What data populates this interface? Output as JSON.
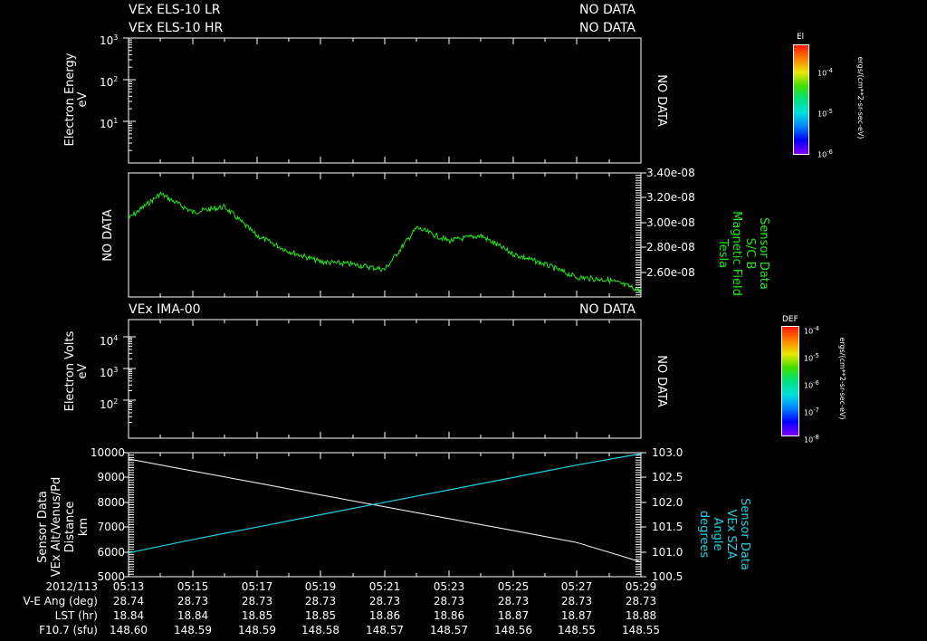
{
  "colors": {
    "background": "#000000",
    "foreground": "#ffffff",
    "magnetic_field": "#22e81e",
    "sza": "#22d0e0",
    "altitude": "#ffffff"
  },
  "panel1": {
    "title_left_1": "VEx ELS-10 LR",
    "title_left_2": "VEx ELS-10 HR",
    "title_right_1": "NO DATA",
    "title_right_2": "NO DATA",
    "ylabel_1": "Electron Energy",
    "ylabel_2": "eV",
    "yticks": [
      {
        "base": "10",
        "exp": "3"
      },
      {
        "base": "10",
        "exp": "2"
      },
      {
        "base": "10",
        "exp": "1"
      }
    ],
    "right_label": "NO DATA",
    "colorbar": {
      "title": "El",
      "ticks": [
        {
          "base": "10",
          "exp": "-4"
        },
        {
          "base": "10",
          "exp": "-5"
        },
        {
          "base": "10",
          "exp": "-6"
        }
      ],
      "units": "ergs/(cm**2-sr-sec-eV)"
    }
  },
  "panel2": {
    "left_label": "NO DATA",
    "yticks": [
      "3.40e-08",
      "3.20e-08",
      "3.00e-08",
      "2.80e-08",
      "2.60e-08"
    ],
    "ylabel_lines": [
      "Sensor Data",
      "S/C B",
      "Magnetic Field",
      "Tesla"
    ]
  },
  "panel3": {
    "title_left": "VEx IMA-00",
    "title_right": "NO DATA",
    "ylabel_1": "Electron Volts",
    "ylabel_2": "eV",
    "yticks": [
      {
        "base": "10",
        "exp": "4"
      },
      {
        "base": "10",
        "exp": "3"
      },
      {
        "base": "10",
        "exp": "2"
      }
    ],
    "right_label": "NO DATA",
    "colorbar": {
      "title": "DEF",
      "ticks": [
        {
          "base": "10",
          "exp": "-4"
        },
        {
          "base": "10",
          "exp": "-5"
        },
        {
          "base": "10",
          "exp": "-6"
        },
        {
          "base": "10",
          "exp": "-7"
        },
        {
          "base": "10",
          "exp": "-8"
        }
      ],
      "units": "ergs/(cm**2-sr-sec-eV)"
    }
  },
  "panel4": {
    "ylabel_lines": [
      "Sensor Data",
      "VEx Alt/Venus/Pd",
      "Distance",
      "km"
    ],
    "yticks_left": [
      "10000",
      "9000",
      "8000",
      "7000",
      "6000",
      "5000"
    ],
    "yticks_right": [
      "103.0",
      "102.5",
      "102.0",
      "101.5",
      "101.0",
      "100.5"
    ],
    "ylabel_right_lines": [
      "Sensor Data",
      "VEx SZA",
      "Angle",
      "degrees"
    ]
  },
  "footer": {
    "row_labels": [
      "2012/113",
      "V-E Ang (deg)",
      "LST (hr)",
      "F10.7 (sfu)"
    ],
    "columns": [
      {
        "time": "05:13",
        "ve": "28.74",
        "lst": "18.84",
        "f107": "148.60"
      },
      {
        "time": "05:15",
        "ve": "28.73",
        "lst": "18.84",
        "f107": "148.59"
      },
      {
        "time": "05:17",
        "ve": "28.73",
        "lst": "18.85",
        "f107": "148.59"
      },
      {
        "time": "05:19",
        "ve": "28.73",
        "lst": "18.85",
        "f107": "148.58"
      },
      {
        "time": "05:21",
        "ve": "28.73",
        "lst": "18.86",
        "f107": "148.57"
      },
      {
        "time": "05:23",
        "ve": "28.73",
        "lst": "18.86",
        "f107": "148.57"
      },
      {
        "time": "05:25",
        "ve": "28.73",
        "lst": "18.87",
        "f107": "148.56"
      },
      {
        "time": "05:27",
        "ve": "28.73",
        "lst": "18.87",
        "f107": "148.55"
      },
      {
        "time": "05:29",
        "ve": "28.73",
        "lst": "18.88",
        "f107": "148.55"
      }
    ]
  },
  "chart_data": [
    {
      "type": "heatmap",
      "title": "VEx ELS-10 LR / VEx ELS-10 HR",
      "status": "NO DATA",
      "ylabel": "Electron Energy (eV)",
      "yscale": "log",
      "ylim": [
        1,
        1000
      ],
      "colorbar_label": "El ergs/(cm**2-sr-sec-eV)",
      "colorbar_range": [
        1e-06,
        0.0001
      ]
    },
    {
      "type": "line",
      "title": "Sensor Data S/C B Magnetic Field",
      "ylabel": "Tesla",
      "ylim": [
        2.45e-08,
        3.4e-08
      ],
      "x": [
        "05:13",
        "05:14",
        "05:15",
        "05:16",
        "05:17",
        "05:18",
        "05:19",
        "05:20",
        "05:21",
        "05:22",
        "05:23",
        "05:24",
        "05:25",
        "05:26",
        "05:27",
        "05:28",
        "05:29"
      ],
      "series": [
        {
          "name": "S/C B",
          "color": "#22e81e",
          "values": [
            3.05e-08,
            3.24e-08,
            3.1e-08,
            3.14e-08,
            2.92e-08,
            2.8e-08,
            2.72e-08,
            2.7e-08,
            2.66e-08,
            2.98e-08,
            2.88e-08,
            2.92e-08,
            2.78e-08,
            2.7e-08,
            2.6e-08,
            2.58e-08,
            2.5e-08
          ]
        }
      ]
    },
    {
      "type": "heatmap",
      "title": "VEx IMA-00",
      "status": "NO DATA",
      "ylabel": "Electron Volts (eV)",
      "yscale": "log",
      "ylim": [
        10,
        50000
      ],
      "colorbar_label": "DEF ergs/(cm**2-sr-sec-eV)",
      "colorbar_range": [
        1e-08,
        0.0001
      ]
    },
    {
      "type": "line",
      "title": "VEx Alt / SZA",
      "x": [
        "05:13",
        "05:15",
        "05:17",
        "05:19",
        "05:21",
        "05:23",
        "05:25",
        "05:27",
        "05:29"
      ],
      "series": [
        {
          "name": "VEx Alt/Venus/Pd Distance (km)",
          "axis": "left",
          "color": "#ffffff",
          "values": [
            9750,
            9260,
            8780,
            8300,
            7820,
            7340,
            6860,
            6380,
            5600
          ]
        },
        {
          "name": "VEx SZA Angle (degrees)",
          "axis": "right",
          "color": "#22d0e0",
          "values": [
            100.98,
            101.25,
            101.5,
            101.75,
            102.0,
            102.25,
            102.5,
            102.75,
            102.98
          ]
        }
      ],
      "ylim_left": [
        5000,
        10000
      ],
      "ylim_right": [
        100.5,
        103.0
      ]
    }
  ]
}
